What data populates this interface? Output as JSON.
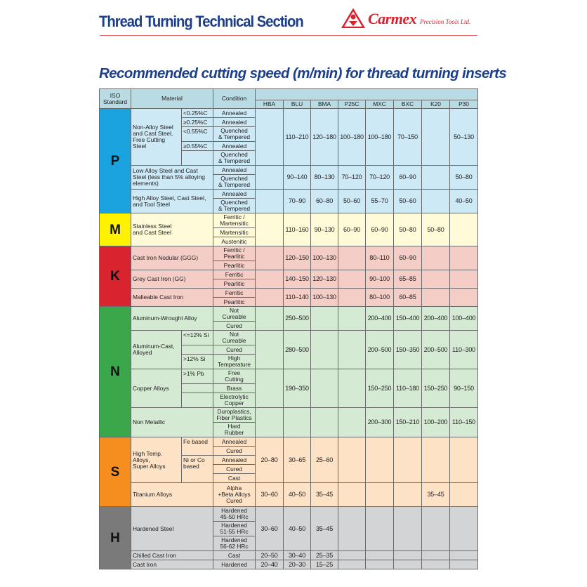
{
  "header": {
    "title": "Thread Turning Technical Section",
    "logo_brand": "Carmex",
    "logo_sub": "Precision Tools Ltd.",
    "subtitle": "Recommended cutting speed (m/min) for thread turning inserts"
  },
  "colors": {
    "title": "#1b3f8b",
    "logo": "#d7232e",
    "header_bg": "#b9dbe3"
  },
  "table": {
    "headers": {
      "iso": "ISO\nStandard",
      "material": "Material",
      "condition": "Condition"
    },
    "grades": [
      "HBA",
      "BLU",
      "BMA",
      "P25C",
      "MXC",
      "BXC",
      "K20",
      "P30"
    ],
    "groups": [
      {
        "iso": "P",
        "color": "#1aa3de",
        "bg": "#cde9f6",
        "materials": [
          {
            "name": "Non-Alloy Steel\nand Cast Steel,\nFree Cutting Steel",
            "subs": [
              {
                "label": "<0.25%C",
                "conditions": [
                  "Annealed"
                ]
              },
              {
                "label": "≥0.25%C",
                "conditions": [
                  "Annealed"
                ]
              },
              {
                "label": "<0.55%C",
                "conditions": [
                  "Quenched\n& Tempered"
                ]
              },
              {
                "label": "≥0.55%C",
                "conditions": [
                  "Annealed"
                ]
              },
              {
                "label": "",
                "conditions": [
                  "Quenched\n& Tempered"
                ]
              }
            ],
            "values": [
              "",
              "110–210",
              "120–180",
              "100–180",
              "100–180",
              "70–150",
              "",
              "50–130"
            ]
          },
          {
            "name": "Low Alloy Steel and Cast\nSteel (less than 5% alloying\nelements)",
            "conditions": [
              "Annealed",
              "Quenched\n& Tempered"
            ],
            "values": [
              "",
              "90–140",
              "80–130",
              "70–120",
              "70–120",
              "60–90",
              "",
              "50–80"
            ]
          },
          {
            "name": "High Alloy Steel, Cast Steel,\nand Tool Steel",
            "conditions": [
              "Annealed",
              "Quenched\n& Tempered"
            ],
            "values": [
              "",
              "70–90",
              "60–80",
              "50–60",
              "55–70",
              "50–60",
              "",
              "40–50"
            ]
          }
        ]
      },
      {
        "iso": "M",
        "color": "#fff200",
        "bg": "#fffbd9",
        "materials": [
          {
            "name": "Stainless Steel\nand Cast Steel",
            "conditions": [
              "Ferritic /\nMartensitic",
              "Martensitic",
              "Austenitic"
            ],
            "values": [
              "",
              "110–160",
              "90–130",
              "60–90",
              "60–90",
              "50–80",
              "50–80",
              ""
            ]
          }
        ]
      },
      {
        "iso": "K",
        "color": "#d9232e",
        "bg": "#f4cdc6",
        "materials": [
          {
            "name": "Cast Iron Nodular (GGG)",
            "conditions": [
              "Ferritic /\nPearlitic",
              "Pearlitic"
            ],
            "values": [
              "",
              "120–150",
              "100–130",
              "",
              "80–110",
              "60–90",
              "",
              ""
            ]
          },
          {
            "name": "Grey Cast Iron (GG)",
            "conditions": [
              "Ferritic",
              "Pearlitic"
            ],
            "values": [
              "",
              "140–150",
              "120–130",
              "",
              "90–100",
              "65–85",
              "",
              ""
            ]
          },
          {
            "name": "Malleable Cast Iron",
            "conditions": [
              "Ferritic",
              "Pearlitic"
            ],
            "values": [
              "",
              "110–140",
              "100–130",
              "",
              "80–100",
              "60–85",
              "",
              ""
            ]
          }
        ]
      },
      {
        "iso": "N",
        "color": "#3aa84a",
        "bg": "#d4ead3",
        "materials": [
          {
            "name": "Aluminum-Wrought Alloy",
            "conditions": [
              "Not\nCureable",
              "Cured"
            ],
            "values": [
              "",
              "250–500",
              "",
              "",
              "200–400",
              "150–400",
              "200–400",
              "100–400"
            ]
          },
          {
            "name": "Aluminum-Cast,\nAlloyed",
            "subs": [
              {
                "label": "<=12% Si",
                "conditions": [
                  "Not\nCureable"
                ]
              },
              {
                "label": "",
                "conditions": [
                  "Cured"
                ]
              },
              {
                "label": ">12% Si",
                "conditions": [
                  "High\nTemperature"
                ]
              }
            ],
            "values": [
              "",
              "280–500",
              "",
              "",
              "200–500",
              "150–350",
              "200–500",
              "110–300"
            ]
          },
          {
            "name": "Copper Alloys",
            "subs": [
              {
                "label": ">1% Pb",
                "conditions": [
                  "Free\nCutting"
                ]
              },
              {
                "label": "",
                "conditions": [
                  "Brass"
                ]
              },
              {
                "label": "",
                "conditions": [
                  "Electrolytic\nCopper"
                ]
              }
            ],
            "values": [
              "",
              "190–350",
              "",
              "",
              "150–250",
              "110–180",
              "150–250",
              "90–150"
            ]
          },
          {
            "name": "Non Metallic",
            "conditions": [
              "Duroplastics,\nFiber Plastics",
              "Hard\nRubber"
            ],
            "values": [
              "",
              "",
              "",
              "",
              "200–300",
              "150–210",
              "100–200",
              "110–150"
            ]
          }
        ]
      },
      {
        "iso": "S",
        "color": "#f68d1f",
        "bg": "#fde2c6",
        "materials": [
          {
            "name": "High Temp. Alloys,\nSuper Alloys",
            "subs": [
              {
                "label": "Fe based",
                "conditions": [
                  "Annealed",
                  "Cured"
                ]
              },
              {
                "label": "Ni or Co\nbased",
                "conditions": [
                  "Annealed",
                  "Cured",
                  "Cast"
                ]
              }
            ],
            "values": [
              "20–80",
              "30–65",
              "25–60",
              "",
              "",
              "",
              "",
              ""
            ]
          },
          {
            "name": "Titanium Alloys",
            "conditions": [
              "Alpha\n+Beta Alloys\nCured"
            ],
            "values": [
              "30–60",
              "40–50",
              "35–45",
              "",
              "",
              "",
              "35–45",
              ""
            ]
          }
        ]
      },
      {
        "iso": "H",
        "color": "#7a7a7a",
        "bg": "#d3d4d6",
        "materials": [
          {
            "name": "Hardened Steel",
            "conditions": [
              "Hardened\n45-50 HRc",
              "Hardened\n51-55 HRc",
              "Hardened\n56-62 HRc"
            ],
            "values": [
              "30–60",
              "40–50",
              "35–45",
              "",
              "",
              "",
              "",
              ""
            ]
          },
          {
            "name": "Chilled Cast Iron",
            "conditions": [
              "Cast"
            ],
            "values": [
              "20–50",
              "30–40",
              "25–35",
              "",
              "",
              "",
              "",
              ""
            ]
          },
          {
            "name": "Cast Iron",
            "conditions": [
              "Hardened"
            ],
            "values": [
              "20–40",
              "20–30",
              "15–25",
              "",
              "",
              "",
              "",
              ""
            ]
          }
        ]
      }
    ]
  }
}
